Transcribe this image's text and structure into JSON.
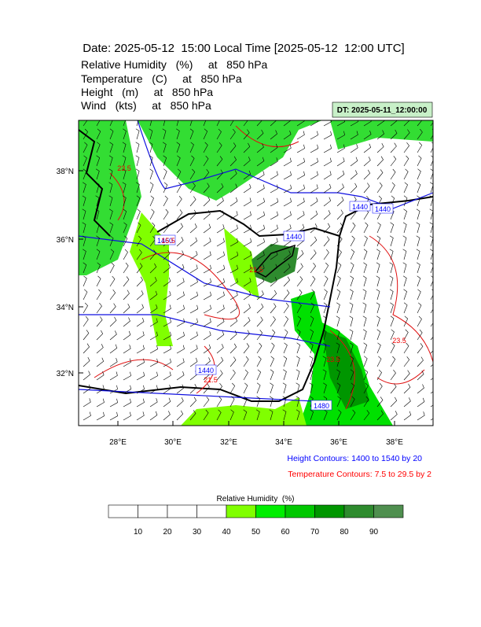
{
  "header": {
    "title": "Date: 2025-05-12  15:00 Local Time [2025-05-12  12:00 UTC]",
    "lines": [
      "Relative Humidity   (%)     at   850 hPa",
      "Temperature   (C)     at   850 hPa",
      "Height   (m)     at   850 hPa",
      "Wind   (kts)     at   850 hPa"
    ],
    "valid_time": "DT: 2025-05-11_12:00:00"
  },
  "map": {
    "lat_labels": [
      "38°N",
      "36°N",
      "34°N",
      "32°N"
    ],
    "lon_labels": [
      "28°E",
      "30°E",
      "32°E",
      "34°E",
      "36°E",
      "38°E"
    ],
    "height_contour_labels": [
      "1440",
      "1440",
      "1440",
      "1440",
      "1480",
      "1460"
    ],
    "temperature_contour_labels": [
      "23.5",
      "15.5",
      "21.5",
      "23.5",
      "21.5",
      "23.5"
    ]
  },
  "notes": {
    "height": "Height Contours: 1400 to 1540 by 20",
    "temperature": "Temperature Contours: 7.5 to 29.5 by 2"
  },
  "colorbar": {
    "title": "Relative Humidity  (%)",
    "labels": [
      10,
      20,
      30,
      40,
      50,
      60,
      70,
      80,
      90
    ],
    "colors": [
      "#ffffff",
      "#ffffff",
      "#ffffff",
      "#ffffff",
      "#80ff00",
      "#00ee00",
      "#00c800",
      "#009600",
      "#2e8b2e",
      "#4f8f4f"
    ]
  }
}
